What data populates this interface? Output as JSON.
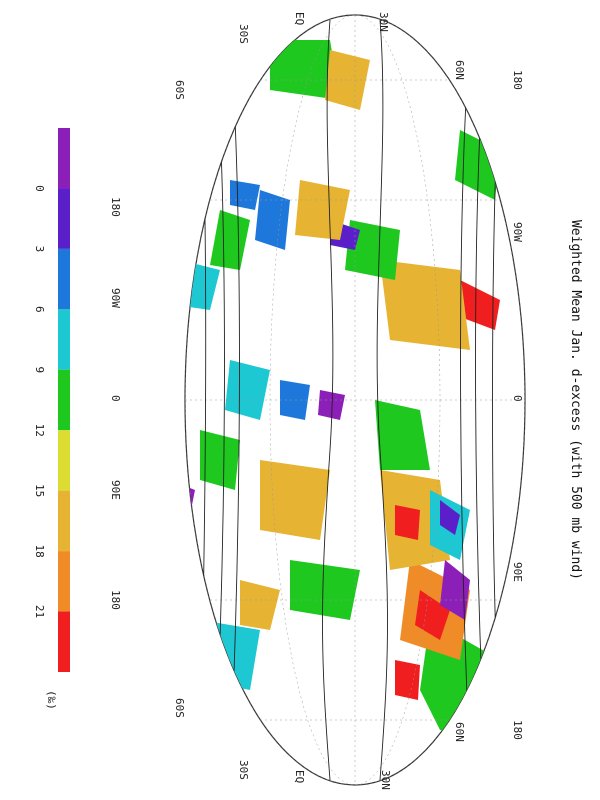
{
  "title": "Weighted Mean Jan. d-excess (with 500 mb wind)",
  "map": {
    "lon_labels_top": [
      "180",
      "90W",
      "0",
      "90E",
      "180"
    ],
    "lon_labels_bottom": [
      "180",
      "90W",
      "0",
      "90E",
      "180"
    ],
    "lat_labels_left": [
      "60S",
      "30S",
      "EQ",
      "30N",
      "60N"
    ],
    "lat_labels_right": [
      "60N",
      "30N",
      "EQ",
      "30S",
      "60S"
    ]
  },
  "colorbar": {
    "ticks": [
      "0",
      "3",
      "6",
      "9",
      "12",
      "15",
      "18",
      "21"
    ],
    "unit": "(‰)",
    "colors": [
      "#8b1fb8",
      "#5a1fc8",
      "#1e78dc",
      "#1ec8d2",
      "#1ec81e",
      "#dcdc32",
      "#e6b432",
      "#f08c28",
      "#f01e1e"
    ]
  }
}
